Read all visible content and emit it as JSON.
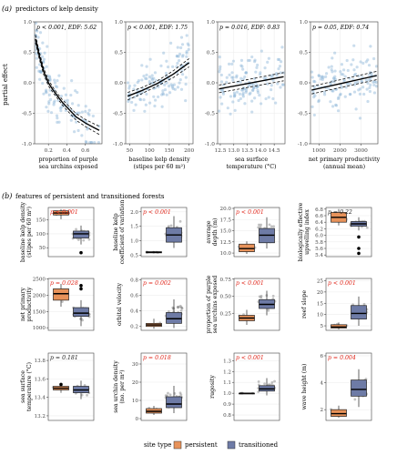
{
  "chart_data": {
    "panel_a": {
      "label": "(a)",
      "title": "predictors of kelp density",
      "ylabel": "partial effect",
      "ylim": [
        -1,
        1
      ],
      "yticks": [
        "1.0",
        "0.5",
        "0.0",
        "-0.5",
        "-1.0"
      ],
      "plots": [
        {
          "type": "scatter+smooth",
          "annotation": "p < 0.001, EDF: 5.62",
          "xlabel": [
            "proportion of purple",
            "sea urchins exposed"
          ],
          "xlim": [
            0.05,
            0.78
          ],
          "xticks": [
            "0.2",
            "0.4",
            "0.6"
          ],
          "fit": [
            [
              0.06,
              0.72
            ],
            [
              0.1,
              0.45
            ],
            [
              0.15,
              0.18
            ],
            [
              0.2,
              0.0
            ],
            [
              0.25,
              -0.12
            ],
            [
              0.3,
              -0.22
            ],
            [
              0.35,
              -0.32
            ],
            [
              0.4,
              -0.4
            ],
            [
              0.5,
              -0.56
            ],
            [
              0.6,
              -0.66
            ],
            [
              0.7,
              -0.74
            ],
            [
              0.75,
              -0.78
            ]
          ]
        },
        {
          "type": "scatter+smooth",
          "annotation": "p < 0.001, EDF: 1.75",
          "xlabel": [
            "baseline kelp density",
            "(stipes per 60 m²)"
          ],
          "xlim": [
            40,
            210
          ],
          "xticks": [
            "50",
            "100",
            "150",
            "200"
          ],
          "fit": [
            [
              45,
              -0.22
            ],
            [
              80,
              -0.13
            ],
            [
              120,
              -0.01
            ],
            [
              160,
              0.14
            ],
            [
              200,
              0.33
            ]
          ]
        },
        {
          "type": "scatter+smooth",
          "annotation": "p = 0.016, EDF: 0.83",
          "xlabel": [
            "sea surface",
            "temperature (°C)"
          ],
          "xlim": [
            12.4,
            14.9
          ],
          "xticks": [
            "12.5",
            "13.0",
            "13.5",
            "14.0",
            "14.5"
          ],
          "fit": [
            [
              12.45,
              -0.1
            ],
            [
              14.85,
              0.1
            ]
          ]
        },
        {
          "type": "scatter+smooth",
          "annotation": "p = 0.05, EDF: 0.74",
          "xlabel": [
            "net primary productivity",
            "(annual mean)"
          ],
          "xlim": [
            600,
            3800
          ],
          "xticks": [
            "1000",
            "2000",
            "3000"
          ],
          "fit": [
            [
              650,
              -0.12
            ],
            [
              3750,
              0.12
            ]
          ]
        }
      ]
    },
    "panel_b": {
      "label": "(b)",
      "title": "features of persistent and transitioned forests",
      "legend": {
        "title": "site type",
        "items": [
          "persistent",
          "transitioned"
        ],
        "position": "bottom"
      },
      "colors": {
        "persistent": "#E7925A",
        "transitioned": "#6E7BA6"
      },
      "plots": [
        {
          "ylabel": [
            "baseline kelp density",
            "(stipes per 60 m²)"
          ],
          "annotation": "p < 0.001",
          "sig": true,
          "ylim": [
            18,
            195
          ],
          "yticks": [
            "150",
            "100",
            "50"
          ],
          "tick_values": [
            150,
            100,
            50
          ],
          "persistent": {
            "q1": 168,
            "median": 175,
            "q3": 183,
            "lo": 153,
            "hi": 189
          },
          "transitioned": {
            "q1": 85,
            "median": 100,
            "q3": 110,
            "lo": 62,
            "hi": 130,
            "outliers": [
              32
            ]
          }
        },
        {
          "ylabel": [
            "baseline kelp",
            "coefficient of variation"
          ],
          "annotation": "p < 0.001",
          "sig": true,
          "ylim": [
            0.45,
            2.15
          ],
          "yticks": [
            "2.0",
            "1.5",
            "1.0",
            "0.5"
          ],
          "tick_values": [
            2.0,
            1.5,
            1.0,
            0.5
          ],
          "persistent": {
            "q1": 0.58,
            "median": 0.6,
            "q3": 0.62,
            "lo": 0.56,
            "hi": 0.64
          },
          "transitioned": {
            "q1": 0.95,
            "median": 1.2,
            "q3": 1.45,
            "lo": 0.75,
            "hi": 1.85
          }
        },
        {
          "ylabel": [
            "average",
            "depth (m)"
          ],
          "annotation": "p < 0.001",
          "sig": true,
          "ylim": [
            9.2,
            20.2
          ],
          "yticks": [
            "20.0",
            "17.5",
            "15.0",
            "12.5",
            "10.0"
          ],
          "tick_values": [
            20.0,
            17.5,
            15.0,
            12.5,
            10.0
          ],
          "persistent": {
            "q1": 10.3,
            "median": 11.0,
            "q3": 12.0,
            "lo": 9.8,
            "hi": 12.6
          },
          "transitioned": {
            "q1": 12.3,
            "median": 14.0,
            "q3": 15.5,
            "lo": 11.0,
            "hi": 18.0
          }
        },
        {
          "ylabel": [
            "biologically effective",
            "upwelling index"
          ],
          "annotation": "p = 0.22",
          "sig": false,
          "ylim": [
            5.35,
            6.85
          ],
          "yticks": [
            "6.8",
            "6.6",
            "6.4",
            "6.2",
            "6.0",
            "5.8",
            "5.6",
            "5.4"
          ],
          "tick_values": [
            6.8,
            6.6,
            6.4,
            6.2,
            6.0,
            5.8,
            5.6,
            5.4
          ],
          "persistent": {
            "q1": 6.4,
            "median": 6.55,
            "q3": 6.7,
            "lo": 6.3,
            "hi": 6.8
          },
          "transitioned": {
            "q1": 6.28,
            "median": 6.35,
            "q3": 6.42,
            "lo": 6.15,
            "hi": 6.55,
            "outliers": [
              5.95,
              5.6,
              5.45
            ]
          }
        },
        {
          "ylabel": [
            "net primary",
            "productivity"
          ],
          "annotation": "p = 0.028",
          "sig": true,
          "ylim": [
            920,
            2520
          ],
          "yticks": [
            "2500",
            "2000",
            "1500",
            "1000"
          ],
          "tick_values": [
            2500,
            2000,
            1500,
            1000
          ],
          "persistent": {
            "q1": 1850,
            "median": 2050,
            "q3": 2200,
            "lo": 1650,
            "hi": 2350
          },
          "transitioned": {
            "q1": 1350,
            "median": 1450,
            "q3": 1620,
            "lo": 1050,
            "hi": 1850,
            "outliers": [
              2300,
              2200
            ]
          }
        },
        {
          "ylabel": [
            "orbital velocity"
          ],
          "annotation": "p = 0.002",
          "sig": true,
          "ylim": [
            0.15,
            0.82
          ],
          "yticks": [
            "0.8",
            "0.6",
            "0.4",
            "0.2"
          ],
          "tick_values": [
            0.8,
            0.6,
            0.4,
            0.2
          ],
          "persistent": {
            "q1": 0.2,
            "median": 0.22,
            "q3": 0.24,
            "lo": 0.17,
            "hi": 0.3
          },
          "transitioned": {
            "q1": 0.24,
            "median": 0.3,
            "q3": 0.38,
            "lo": 0.18,
            "hi": 0.55
          }
        },
        {
          "ylabel": [
            "proportion of purple",
            "sea urchins exposed"
          ],
          "annotation": "p < 0.001",
          "sig": true,
          "ylim": [
            0.0,
            0.76
          ],
          "yticks": [
            "0.75",
            "0.50",
            "0.25"
          ],
          "tick_values": [
            0.75,
            0.5,
            0.25
          ],
          "persistent": {
            "q1": 0.14,
            "median": 0.18,
            "q3": 0.22,
            "lo": 0.08,
            "hi": 0.3
          },
          "transitioned": {
            "q1": 0.32,
            "median": 0.38,
            "q3": 0.45,
            "lo": 0.22,
            "hi": 0.58
          }
        },
        {
          "ylabel": [
            "reef slope"
          ],
          "annotation": "p < 0.001",
          "sig": true,
          "ylim": [
            3,
            26
          ],
          "yticks": [
            "25",
            "20",
            "15",
            "10",
            "5"
          ],
          "tick_values": [
            25,
            20,
            15,
            10,
            5
          ],
          "persistent": {
            "q1": 4.0,
            "median": 4.5,
            "q3": 5.5,
            "lo": 3.5,
            "hi": 6.5
          },
          "transitioned": {
            "q1": 8.0,
            "median": 10.5,
            "q3": 14.0,
            "lo": 5.0,
            "hi": 18.0
          }
        },
        {
          "ylabel": [
            "sea surface",
            "temperature (°C)"
          ],
          "annotation": "p = 0.181",
          "sig": false,
          "ylim": [
            13.15,
            13.88
          ],
          "yticks": [
            "13.8",
            "13.6",
            "13.4",
            "13.2"
          ],
          "tick_values": [
            13.8,
            13.6,
            13.4,
            13.2
          ],
          "persistent": {
            "q1": 13.48,
            "median": 13.5,
            "q3": 13.52,
            "lo": 13.45,
            "hi": 13.55,
            "outliers": [
              13.54
            ]
          },
          "transitioned": {
            "q1": 13.45,
            "median": 13.48,
            "q3": 13.52,
            "lo": 13.38,
            "hi": 13.58
          }
        },
        {
          "ylabel": [
            "sea urchin density",
            "(no. per m²)"
          ],
          "annotation": "p = 0.018",
          "sig": true,
          "ylim": [
            -1,
            36
          ],
          "yticks": [
            "30",
            "20",
            "10",
            "0"
          ],
          "tick_values": [
            30,
            20,
            10,
            0
          ],
          "persistent": {
            "q1": 3,
            "median": 4,
            "q3": 5.5,
            "lo": 2,
            "hi": 7
          },
          "transitioned": {
            "q1": 6,
            "median": 8,
            "q3": 12,
            "lo": 3,
            "hi": 18
          }
        },
        {
          "ylabel": [
            "rugosity"
          ],
          "annotation": "p < 0.001",
          "sig": true,
          "ylim": [
            0.75,
            1.37
          ],
          "yticks": [
            "1.3",
            "1.2",
            "1.1",
            "1.0",
            "0.9",
            "0.8"
          ],
          "tick_values": [
            1.3,
            1.2,
            1.1,
            1.0,
            0.9,
            0.8
          ],
          "persistent": {
            "q1": 1.0,
            "median": 1.0,
            "q3": 1.0,
            "lo": 1.0,
            "hi": 1.0
          },
          "transitioned": {
            "q1": 1.02,
            "median": 1.04,
            "q3": 1.07,
            "lo": 0.98,
            "hi": 1.14
          }
        },
        {
          "ylabel": [
            "wave height (m)"
          ],
          "annotation": "p = 0.004",
          "sig": true,
          "ylim": [
            1.2,
            6.2
          ],
          "yticks": [
            "6",
            "4",
            "2"
          ],
          "tick_values": [
            6,
            4,
            2
          ],
          "persistent": {
            "q1": 1.5,
            "median": 1.7,
            "q3": 2.0,
            "lo": 1.4,
            "hi": 2.3
          },
          "transitioned": {
            "q1": 3.0,
            "median": 3.5,
            "q3": 4.2,
            "lo": 2.2,
            "hi": 5.0
          }
        }
      ]
    }
  }
}
